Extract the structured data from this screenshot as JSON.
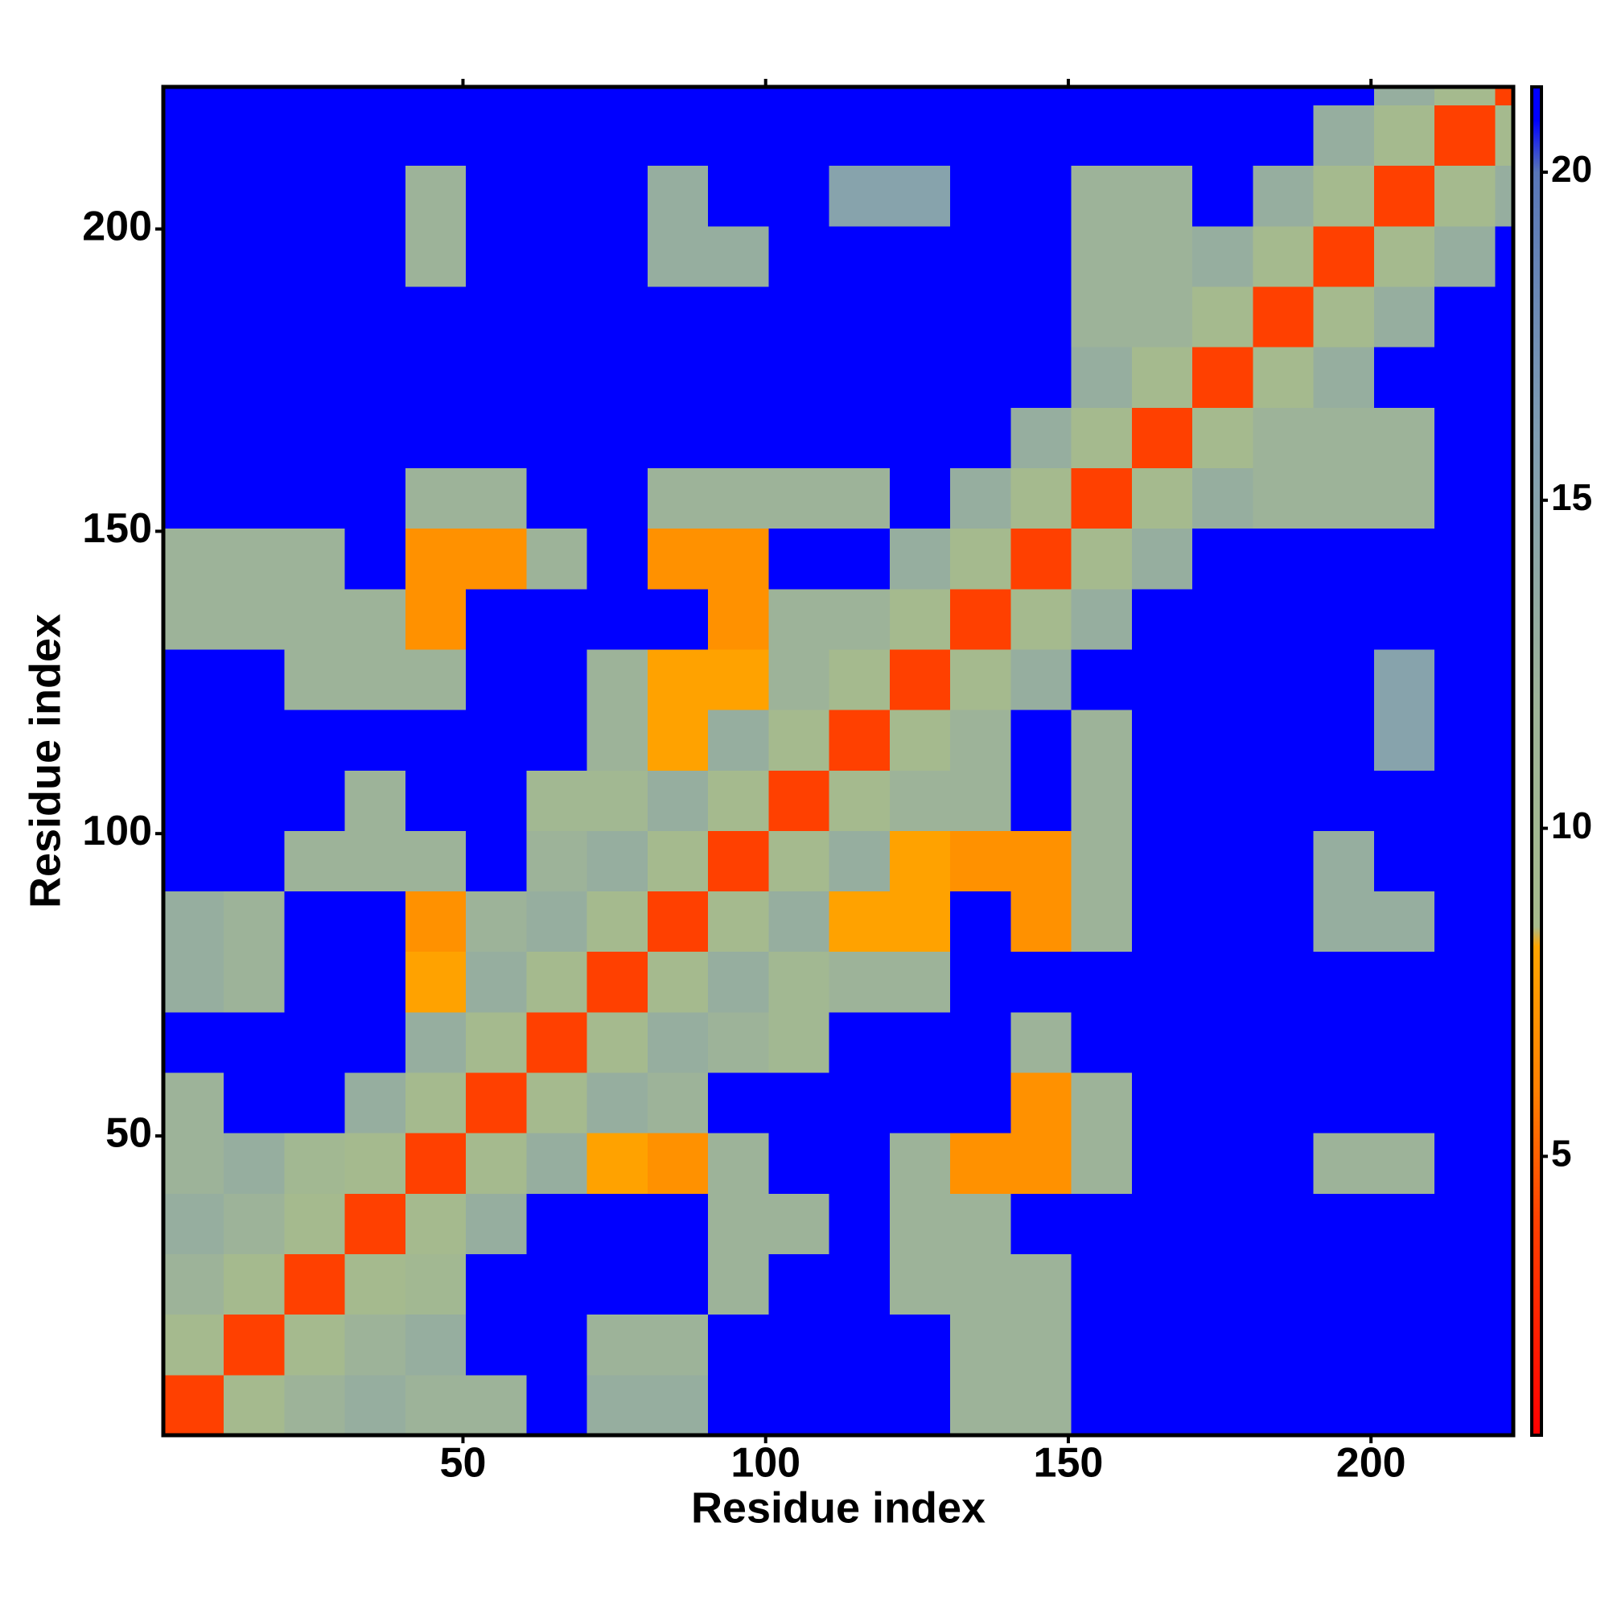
{
  "chart_data": {
    "type": "heatmap",
    "xlabel": "Residue index",
    "ylabel": "Residue index",
    "xbins": [
      0.5,
      10.5,
      20.5,
      30.5,
      40.5,
      50.5,
      60.5,
      70.5,
      80.5,
      90.5,
      100.5,
      110.5,
      120.5,
      130.5,
      140.5,
      150.5,
      160.5,
      170.5,
      180.5,
      190.5,
      200.5,
      210.5,
      220.5,
      223.5
    ],
    "ybins": [
      0.5,
      10.5,
      20.5,
      30.5,
      40.5,
      50.5,
      60.5,
      70.5,
      80.5,
      90.5,
      100.5,
      110.5,
      120.5,
      130.5,
      140.5,
      150.5,
      160.5,
      170.5,
      180.5,
      190.5,
      200.5,
      210.5,
      220.5,
      223.5
    ],
    "xlim": [
      0.5,
      223.5
    ],
    "ylim": [
      0.5,
      223.5
    ],
    "xticks": [
      50,
      100,
      150,
      200
    ],
    "yticks": [
      50,
      100,
      150,
      200
    ],
    "zlim": [
      0.75,
      21.3
    ],
    "zticks": [
      5,
      10,
      15,
      20
    ],
    "colorscale": [
      [
        0.75,
        "#ff0000"
      ],
      [
        4,
        "#ff4000"
      ],
      [
        6,
        "#ff8000"
      ],
      [
        8.2,
        "#ffa500"
      ],
      [
        8.5,
        "#a6bb8c"
      ],
      [
        12,
        "#9db399"
      ],
      [
        16,
        "#7f9db2"
      ],
      [
        20,
        "#5876b8"
      ],
      [
        20.8,
        "#0000ff"
      ],
      [
        21.3,
        "#0000ff"
      ]
    ],
    "z": [
      [
        4,
        9,
        12,
        13,
        12,
        12,
        21,
        13,
        13,
        21,
        21,
        21,
        21,
        12,
        12,
        21,
        21,
        21,
        21,
        21,
        21,
        21,
        21
      ],
      [
        9,
        4,
        9,
        12,
        13,
        21,
        21,
        12,
        12,
        21,
        21,
        21,
        21,
        12,
        12,
        21,
        21,
        21,
        21,
        21,
        21,
        21,
        21
      ],
      [
        12,
        9,
        4,
        9,
        10,
        21,
        21,
        21,
        21,
        12,
        21,
        21,
        12,
        12,
        12,
        21,
        21,
        21,
        21,
        21,
        21,
        21,
        21
      ],
      [
        13,
        12,
        9,
        4,
        9,
        13,
        21,
        21,
        21,
        12,
        12,
        21,
        12,
        12,
        21,
        21,
        21,
        21,
        21,
        21,
        21,
        21,
        21
      ],
      [
        12,
        13,
        10,
        9,
        4,
        9,
        13,
        8,
        7,
        12,
        21,
        21,
        12,
        7,
        7,
        12,
        21,
        21,
        21,
        12,
        12,
        21,
        21
      ],
      [
        12,
        21,
        21,
        13,
        9,
        4,
        9,
        13,
        12,
        21,
        21,
        21,
        21,
        21,
        7,
        12,
        21,
        21,
        21,
        21,
        21,
        21,
        21
      ],
      [
        21,
        21,
        21,
        21,
        13,
        9,
        4,
        9,
        13,
        12,
        10,
        21,
        21,
        21,
        12,
        21,
        21,
        21,
        21,
        21,
        21,
        21,
        21
      ],
      [
        13,
        12,
        21,
        21,
        8,
        13,
        9,
        4,
        9,
        13,
        10,
        12,
        12,
        21,
        21,
        21,
        21,
        21,
        21,
        21,
        21,
        21,
        21
      ],
      [
        13,
        12,
        21,
        21,
        7,
        12,
        13,
        9,
        4,
        9,
        13,
        8,
        8,
        21,
        7,
        12,
        21,
        21,
        21,
        13,
        13,
        21,
        21
      ],
      [
        21,
        21,
        12,
        12,
        12,
        21,
        12,
        13,
        9,
        4,
        9,
        13,
        8,
        7,
        7,
        12,
        21,
        21,
        21,
        13,
        21,
        21,
        21
      ],
      [
        21,
        21,
        21,
        12,
        21,
        21,
        10,
        10,
        13,
        9,
        4,
        9,
        12,
        12,
        21,
        12,
        21,
        21,
        21,
        21,
        21,
        21,
        21
      ],
      [
        21,
        21,
        21,
        21,
        21,
        21,
        21,
        12,
        8,
        13,
        9,
        4,
        9,
        12,
        21,
        12,
        21,
        21,
        21,
        21,
        15,
        21,
        21
      ],
      [
        21,
        21,
        12,
        12,
        12,
        21,
        21,
        12,
        8,
        8,
        12,
        9,
        4,
        9,
        13,
        21,
        21,
        21,
        21,
        21,
        15,
        21,
        21
      ],
      [
        12,
        12,
        12,
        12,
        7,
        21,
        21,
        21,
        21,
        7,
        12,
        12,
        9,
        4,
        9,
        13,
        21,
        21,
        21,
        21,
        21,
        21,
        21
      ],
      [
        12,
        12,
        12,
        21,
        7,
        7,
        12,
        21,
        7,
        7,
        21,
        21,
        13,
        9,
        4,
        9,
        13,
        21,
        21,
        21,
        21,
        21,
        21
      ],
      [
        21,
        21,
        21,
        21,
        12,
        12,
        21,
        21,
        12,
        12,
        12,
        12,
        21,
        13,
        9,
        4,
        9,
        13,
        12,
        12,
        12,
        21,
        21
      ],
      [
        21,
        21,
        21,
        21,
        21,
        21,
        21,
        21,
        21,
        21,
        21,
        21,
        21,
        21,
        13,
        9,
        4,
        9,
        12,
        12,
        12,
        21,
        21
      ],
      [
        21,
        21,
        21,
        21,
        21,
        21,
        21,
        21,
        21,
        21,
        21,
        21,
        21,
        21,
        21,
        13,
        9,
        4,
        9,
        13,
        21,
        21,
        21
      ],
      [
        21,
        21,
        21,
        21,
        21,
        21,
        21,
        21,
        21,
        21,
        21,
        21,
        21,
        21,
        21,
        12,
        12,
        9,
        4,
        9,
        13,
        21,
        21
      ],
      [
        21,
        21,
        21,
        21,
        12,
        21,
        21,
        21,
        13,
        13,
        21,
        21,
        21,
        21,
        21,
        12,
        12,
        13,
        9,
        4,
        9,
        13,
        21
      ],
      [
        21,
        21,
        21,
        21,
        12,
        21,
        21,
        21,
        13,
        21,
        21,
        15,
        15,
        21,
        21,
        12,
        12,
        21,
        13,
        9,
        4,
        9,
        13
      ],
      [
        21,
        21,
        21,
        21,
        21,
        21,
        21,
        21,
        21,
        21,
        21,
        21,
        21,
        21,
        21,
        21,
        21,
        21,
        21,
        13,
        9,
        4,
        9
      ],
      [
        21,
        21,
        21,
        21,
        21,
        21,
        21,
        21,
        21,
        21,
        21,
        21,
        21,
        21,
        21,
        21,
        21,
        21,
        21,
        21,
        13,
        9,
        4
      ]
    ]
  }
}
